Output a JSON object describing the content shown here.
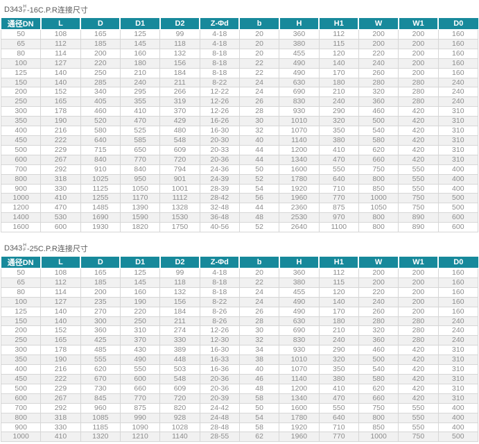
{
  "page": {
    "accent_color": "#17899b",
    "stripe_color": "#f1f1f1",
    "text_color": "#8c8c8c",
    "border_color": "#d6d6d6"
  },
  "tables": [
    {
      "title_prefix": "D343",
      "title_frac_top": "H",
      "title_frac_bottom": "F",
      "title_suffix": "-16C.P.R连接尺寸",
      "columns": [
        "通径DN",
        "L",
        "D",
        "D1",
        "D2",
        "Z-Φd",
        "b",
        "H",
        "H1",
        "W",
        "W1",
        "D0"
      ],
      "rows": [
        [
          "50",
          "108",
          "165",
          "125",
          "99",
          "4-18",
          "20",
          "360",
          "112",
          "200",
          "200",
          "160"
        ],
        [
          "65",
          "112",
          "185",
          "145",
          "118",
          "4-18",
          "20",
          "380",
          "115",
          "200",
          "200",
          "160"
        ],
        [
          "80",
          "114",
          "200",
          "160",
          "132",
          "8-18",
          "20",
          "455",
          "120",
          "220",
          "200",
          "160"
        ],
        [
          "100",
          "127",
          "220",
          "180",
          "156",
          "8-18",
          "22",
          "490",
          "140",
          "240",
          "200",
          "160"
        ],
        [
          "125",
          "140",
          "250",
          "210",
          "184",
          "8-18",
          "22",
          "490",
          "170",
          "260",
          "200",
          "160"
        ],
        [
          "150",
          "140",
          "285",
          "240",
          "211",
          "8-22",
          "24",
          "630",
          "180",
          "280",
          "280",
          "240"
        ],
        [
          "200",
          "152",
          "340",
          "295",
          "266",
          "12-22",
          "24",
          "690",
          "210",
          "320",
          "280",
          "240"
        ],
        [
          "250",
          "165",
          "405",
          "355",
          "319",
          "12-26",
          "26",
          "830",
          "240",
          "360",
          "280",
          "240"
        ],
        [
          "300",
          "178",
          "460",
          "410",
          "370",
          "12-26",
          "28",
          "930",
          "290",
          "460",
          "420",
          "310"
        ],
        [
          "350",
          "190",
          "520",
          "470",
          "429",
          "16-26",
          "30",
          "1010",
          "320",
          "500",
          "420",
          "310"
        ],
        [
          "400",
          "216",
          "580",
          "525",
          "480",
          "16-30",
          "32",
          "1070",
          "350",
          "540",
          "420",
          "310"
        ],
        [
          "450",
          "222",
          "640",
          "585",
          "548",
          "20-30",
          "40",
          "1140",
          "380",
          "580",
          "420",
          "310"
        ],
        [
          "500",
          "229",
          "715",
          "650",
          "609",
          "20-33",
          "44",
          "1200",
          "410",
          "620",
          "420",
          "310"
        ],
        [
          "600",
          "267",
          "840",
          "770",
          "720",
          "20-36",
          "44",
          "1340",
          "470",
          "660",
          "420",
          "310"
        ],
        [
          "700",
          "292",
          "910",
          "840",
          "794",
          "24-36",
          "50",
          "1600",
          "550",
          "750",
          "550",
          "400"
        ],
        [
          "800",
          "318",
          "1025",
          "950",
          "901",
          "24-39",
          "52",
          "1780",
          "640",
          "800",
          "550",
          "400"
        ],
        [
          "900",
          "330",
          "1125",
          "1050",
          "1001",
          "28-39",
          "54",
          "1920",
          "710",
          "850",
          "550",
          "400"
        ],
        [
          "1000",
          "410",
          "1255",
          "1170",
          "1112",
          "28-42",
          "56",
          "1960",
          "770",
          "1000",
          "750",
          "500"
        ],
        [
          "1200",
          "470",
          "1485",
          "1390",
          "1328",
          "32-48",
          "44",
          "2360",
          "875",
          "1050",
          "750",
          "500"
        ],
        [
          "1400",
          "530",
          "1690",
          "1590",
          "1530",
          "36-48",
          "48",
          "2530",
          "970",
          "800",
          "890",
          "600"
        ],
        [
          "1600",
          "600",
          "1930",
          "1820",
          "1750",
          "40-56",
          "52",
          "2640",
          "1100",
          "800",
          "890",
          "600"
        ]
      ]
    },
    {
      "title_prefix": "D343",
      "title_frac_top": "H",
      "title_frac_bottom": "F",
      "title_suffix": "-25C.P.R连接尺寸",
      "columns": [
        "通径DN",
        "L",
        "D",
        "D1",
        "D2",
        "Z-Φd",
        "b",
        "H",
        "H1",
        "W",
        "W1",
        "D0"
      ],
      "rows": [
        [
          "50",
          "108",
          "165",
          "125",
          "99",
          "4-18",
          "20",
          "360",
          "112",
          "200",
          "200",
          "160"
        ],
        [
          "65",
          "112",
          "185",
          "145",
          "118",
          "8-18",
          "22",
          "380",
          "115",
          "200",
          "200",
          "160"
        ],
        [
          "80",
          "114",
          "200",
          "160",
          "132",
          "8-18",
          "24",
          "455",
          "120",
          "220",
          "200",
          "160"
        ],
        [
          "100",
          "127",
          "235",
          "190",
          "156",
          "8-22",
          "24",
          "490",
          "140",
          "240",
          "200",
          "160"
        ],
        [
          "125",
          "140",
          "270",
          "220",
          "184",
          "8-26",
          "26",
          "490",
          "170",
          "260",
          "200",
          "160"
        ],
        [
          "150",
          "140",
          "300",
          "250",
          "211",
          "8-26",
          "28",
          "630",
          "180",
          "280",
          "280",
          "240"
        ],
        [
          "200",
          "152",
          "360",
          "310",
          "274",
          "12-26",
          "30",
          "690",
          "210",
          "320",
          "280",
          "240"
        ],
        [
          "250",
          "165",
          "425",
          "370",
          "330",
          "12-30",
          "32",
          "830",
          "240",
          "360",
          "280",
          "240"
        ],
        [
          "300",
          "178",
          "485",
          "430",
          "389",
          "16-30",
          "34",
          "930",
          "290",
          "460",
          "420",
          "310"
        ],
        [
          "350",
          "190",
          "555",
          "490",
          "448",
          "16-33",
          "38",
          "1010",
          "320",
          "500",
          "420",
          "310"
        ],
        [
          "400",
          "216",
          "620",
          "550",
          "503",
          "16-36",
          "40",
          "1070",
          "350",
          "540",
          "420",
          "310"
        ],
        [
          "450",
          "222",
          "670",
          "600",
          "548",
          "20-36",
          "46",
          "1140",
          "380",
          "580",
          "420",
          "310"
        ],
        [
          "500",
          "229",
          "730",
          "660",
          "609",
          "20-36",
          "48",
          "1200",
          "410",
          "620",
          "420",
          "310"
        ],
        [
          "600",
          "267",
          "845",
          "770",
          "720",
          "20-39",
          "58",
          "1340",
          "470",
          "660",
          "420",
          "310"
        ],
        [
          "700",
          "292",
          "960",
          "875",
          "820",
          "24-42",
          "50",
          "1600",
          "550",
          "750",
          "550",
          "400"
        ],
        [
          "800",
          "318",
          "1085",
          "990",
          "928",
          "24-48",
          "54",
          "1780",
          "640",
          "800",
          "550",
          "400"
        ],
        [
          "900",
          "330",
          "1185",
          "1090",
          "1028",
          "28-48",
          "58",
          "1920",
          "710",
          "850",
          "550",
          "400"
        ],
        [
          "1000",
          "410",
          "1320",
          "1210",
          "1140",
          "28-55",
          "62",
          "1960",
          "770",
          "1000",
          "750",
          "500"
        ]
      ]
    }
  ]
}
